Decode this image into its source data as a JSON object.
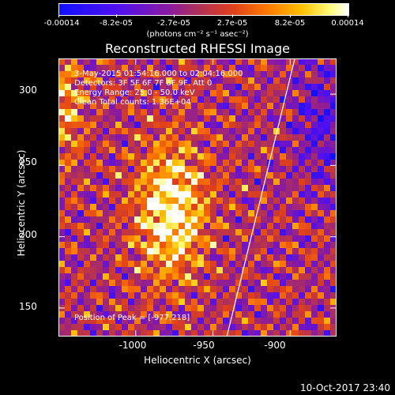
{
  "colorbar": {
    "ticks": [
      "-0.00014",
      "-8.2e-05",
      "-2.7e-05",
      "2.7e-05",
      "8.2e-05",
      "0.00014"
    ],
    "unit_label": "(photons cm⁻² s⁻¹ asec⁻²)"
  },
  "info": {
    "time": "3-May-2015 01:54:16.000 to 02:04:16.000",
    "detectors": "Detectors: 3F 5F 6F 7F 8F 9F, Att 0",
    "energy": "Energy Range: 25.0 - 50.0 keV",
    "clean": "Clean      Total counts: 1.36E+04",
    "peak": "Position of Peak = [-977,218]"
  },
  "footer": {
    "timestamp": "10-Oct-2017 23:40"
  },
  "chart_data": {
    "type": "heatmap",
    "title": "Reconstructed RHESSI Image",
    "xlabel": "Heliocentric X (arcsec)",
    "ylabel": "Heliocentric Y (arcsec)",
    "xlim": [
      -1050,
      -870
    ],
    "ylim": [
      130,
      325
    ],
    "xticks": [
      "-1000",
      "-950",
      "-900"
    ],
    "yticks": [
      "150",
      "200",
      "250",
      "300"
    ],
    "clim": [
      -0.00014,
      0.00014
    ],
    "peak_position": [
      -977,
      218
    ],
    "limb_line": [
      [
        -941,
        130
      ],
      [
        -897,
        325
      ]
    ]
  }
}
